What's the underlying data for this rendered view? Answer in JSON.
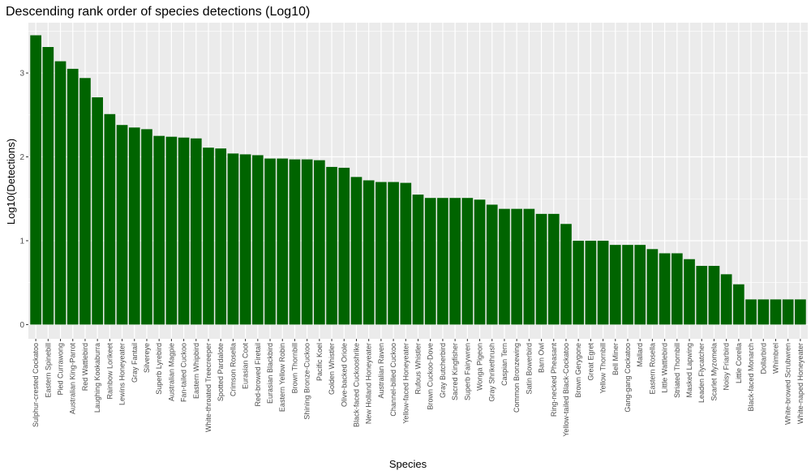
{
  "chart_data": {
    "type": "bar",
    "title": "Descending rank order of species detections (Log10)",
    "xlabel": "Species",
    "ylabel": "Log10(Detections)",
    "ylim": [
      -0.17,
      3.6
    ],
    "yticks": [
      0,
      1,
      2,
      3
    ],
    "grid": true,
    "colors": {
      "bar": "#006400",
      "panel": "#ebebeb",
      "grid": "#ffffff"
    },
    "categories": [
      "Sulphur-crested Cockatoo",
      "Eastern Spinebill",
      "Pied Currawong",
      "Australian King-Parrot",
      "Red Wattlebird",
      "Laughing Kookaburra",
      "Rainbow Lorikeet",
      "Lewins Honeyeater",
      "Gray Fantail",
      "Silvereye",
      "Superb Lyrebird",
      "Australian Magpie",
      "Fan-tailed Cuckoo",
      "Eastern Whipbird",
      "White-throated Treecreeper",
      "Spotted Pardalote",
      "Crimson Rosella",
      "Eurasian Coot",
      "Red-browed Firetail",
      "Eurasian Blackbird",
      "Eastern Yellow Robin",
      "Brown Thornbill",
      "Shining Bronze-Cuckoo",
      "Pacific Koel",
      "Golden Whistler",
      "Olive-backed Oriole",
      "Black-faced Cuckooshrike",
      "New Holland Honeyeater",
      "Australian Raven",
      "Channel-billed Cuckoo",
      "Yellow-faced Honeyeater",
      "Rufous Whistler",
      "Brown Cuckoo-Dove",
      "Gray Butcherbird",
      "Sacred Kingfisher",
      "Superb Fairywren",
      "Wonga Pigeon",
      "Gray Shrikethrush",
      "Caspian Tern",
      "Common Bronzewing",
      "Satin Bowerbird",
      "Barn Owl",
      "Ring-necked Pheasant",
      "Yellow-tailed Black-Cockatoo",
      "Brown Gerygone",
      "Great Egret",
      "Yellow Thornbill",
      "Bell Miner",
      "Gang-gang Cockatoo",
      "Mallard",
      "Eastern Rosella",
      "Little Wattlebird",
      "Striated Thornbill",
      "Masked Lapwing",
      "Leaden Flycatcher",
      "Scarlet Myzomela",
      "Noisy Friarbird",
      "Little Corella",
      "Black-faced Monarch",
      "Dollarbird",
      "Whimbrel",
      "White-browed Scrubwren",
      "White-naped Honeyeater"
    ],
    "values": [
      3.45,
      3.31,
      3.14,
      3.05,
      2.94,
      2.71,
      2.51,
      2.38,
      2.35,
      2.33,
      2.25,
      2.24,
      2.23,
      2.22,
      2.11,
      2.1,
      2.04,
      2.03,
      2.02,
      1.98,
      1.98,
      1.97,
      1.97,
      1.96,
      1.88,
      1.87,
      1.76,
      1.72,
      1.7,
      1.7,
      1.69,
      1.55,
      1.51,
      1.51,
      1.51,
      1.51,
      1.49,
      1.43,
      1.38,
      1.38,
      1.38,
      1.32,
      1.32,
      1.2,
      1.0,
      1.0,
      1.0,
      0.95,
      0.95,
      0.95,
      0.9,
      0.85,
      0.85,
      0.78,
      0.7,
      0.7,
      0.6,
      0.48,
      0.3,
      0.3,
      0.3,
      0.3,
      0.3
    ]
  }
}
